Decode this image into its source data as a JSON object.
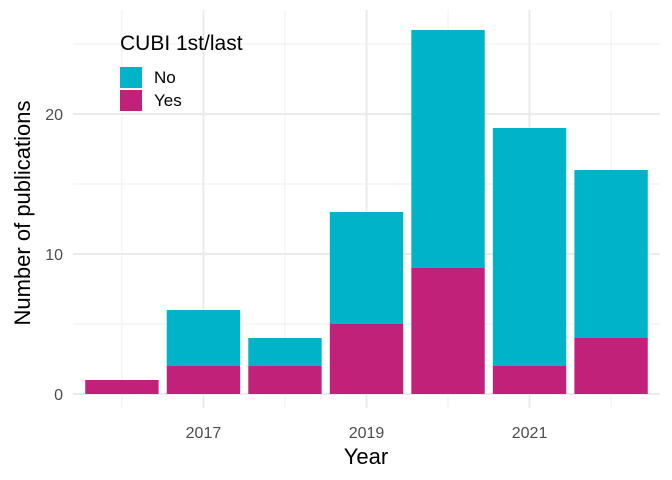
{
  "chart_data": {
    "type": "bar",
    "stacked": true,
    "x": [
      2016,
      2017,
      2018,
      2019,
      2020,
      2021,
      2022
    ],
    "x_tick_labels": [
      "2017",
      "2019",
      "2021"
    ],
    "x_tick_values": [
      2017,
      2019,
      2021
    ],
    "xlabel": "Year",
    "ylabel": "Number of publications",
    "y_tick_values": [
      0,
      10,
      20
    ],
    "y_tick_labels": [
      "0",
      "10",
      "20"
    ],
    "ylim": [
      0,
      27
    ],
    "grid": true,
    "legend": {
      "title": "CUBI 1st/last",
      "placement": "top-left"
    },
    "series": [
      {
        "name": "Yes",
        "color": "#C2217A",
        "values": [
          1,
          2,
          2,
          5,
          9,
          2,
          4
        ]
      },
      {
        "name": "No",
        "color": "#00B3C9",
        "values": [
          0,
          4,
          2,
          8,
          17,
          17,
          12
        ]
      }
    ]
  }
}
